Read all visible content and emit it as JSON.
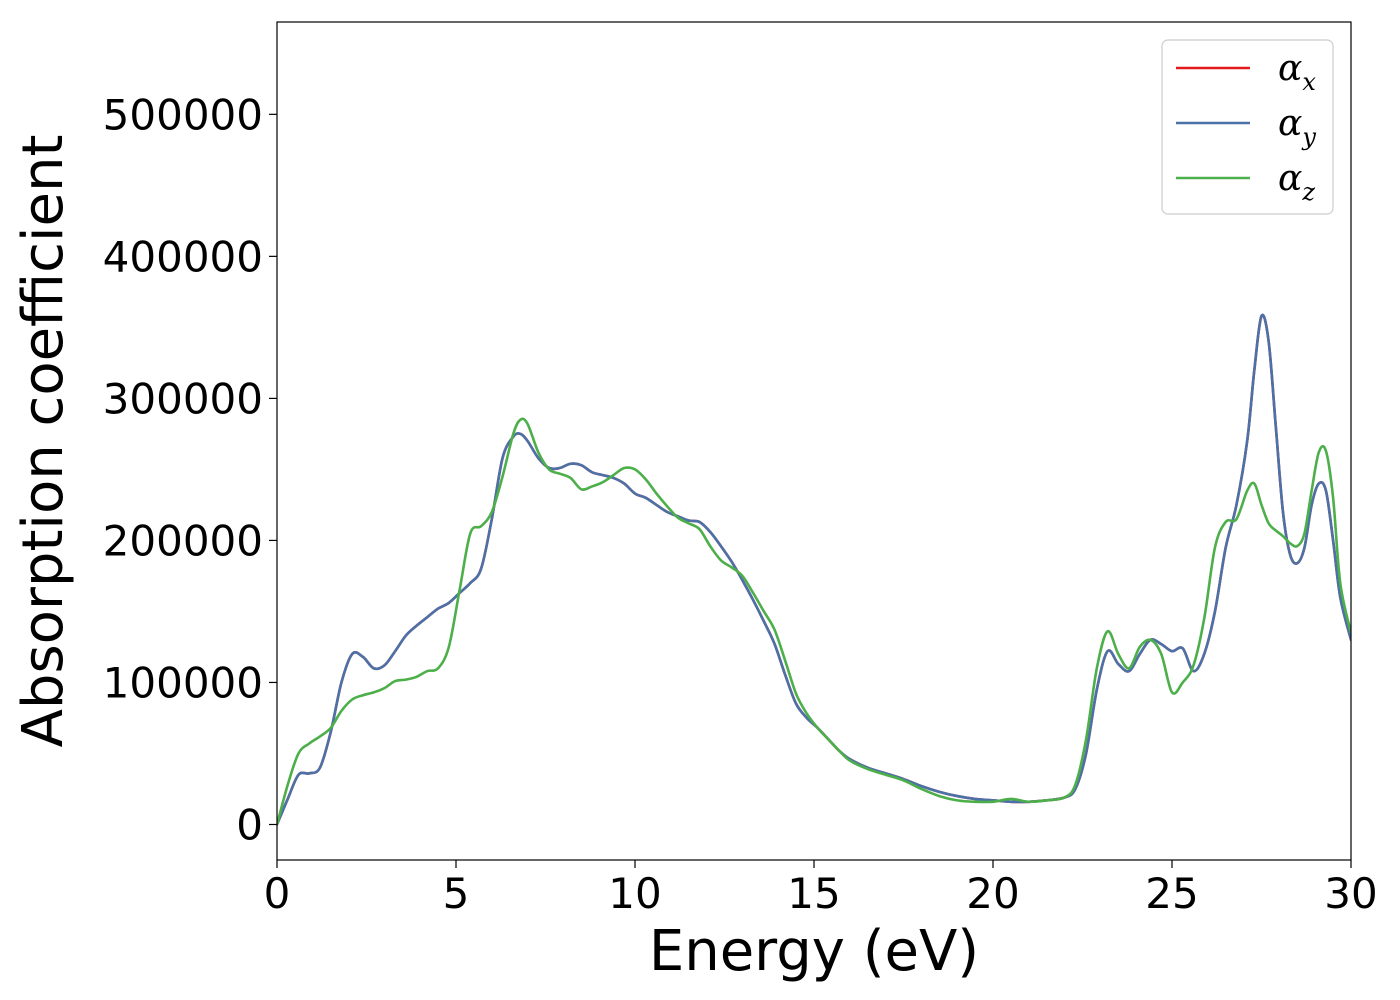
{
  "chart_data": {
    "type": "line",
    "title": "",
    "xlabel": "Energy (eV)",
    "ylabel": "Absorption coefficient",
    "xlim": [
      0,
      30
    ],
    "ylim": [
      -25000,
      565000
    ],
    "x_ticks": [
      0,
      5,
      10,
      15,
      20,
      25,
      30
    ],
    "y_ticks": [
      0,
      100000,
      200000,
      300000,
      400000,
      500000
    ],
    "grid": false,
    "legend_position": "top-right",
    "series": [
      {
        "name": "αx",
        "legend_base": "α",
        "legend_sub": "x",
        "color": "#e41a1c",
        "x": [
          0,
          0.3,
          0.6,
          0.9,
          1.2,
          1.5,
          1.8,
          2.1,
          2.4,
          2.7,
          3.0,
          3.3,
          3.6,
          3.9,
          4.2,
          4.5,
          4.8,
          5.1,
          5.4,
          5.7,
          6.0,
          6.3,
          6.6,
          6.8,
          7.0,
          7.3,
          7.6,
          7.9,
          8.2,
          8.5,
          8.8,
          9.1,
          9.4,
          9.7,
          10.0,
          10.3,
          10.6,
          10.9,
          11.2,
          11.5,
          11.8,
          12.1,
          12.4,
          12.7,
          13.0,
          13.3,
          13.6,
          13.9,
          14.2,
          14.5,
          14.8,
          15.1,
          15.4,
          15.7,
          16.0,
          16.5,
          17.0,
          17.5,
          18.0,
          18.5,
          19.0,
          19.5,
          20.0,
          20.5,
          21.0,
          21.5,
          22.0,
          22.3,
          22.6,
          22.9,
          23.2,
          23.5,
          23.8,
          24.1,
          24.4,
          24.7,
          25.0,
          25.3,
          25.6,
          25.9,
          26.2,
          26.5,
          26.8,
          27.1,
          27.3,
          27.5,
          27.7,
          27.9,
          28.1,
          28.3,
          28.5,
          28.7,
          28.9,
          29.1,
          29.3,
          29.5,
          29.7,
          30.0
        ],
        "values": [
          0,
          18000,
          35000,
          36000,
          40000,
          65000,
          100000,
          120000,
          118000,
          110000,
          112000,
          122000,
          133000,
          140000,
          146000,
          152000,
          156000,
          163000,
          170000,
          180000,
          215000,
          258000,
          273000,
          275000,
          270000,
          258000,
          251000,
          251000,
          254000,
          253000,
          248000,
          246000,
          244000,
          240000,
          233000,
          230000,
          225000,
          220000,
          217000,
          214000,
          213000,
          206000,
          196000,
          185000,
          172000,
          158000,
          143000,
          127000,
          105000,
          85000,
          75000,
          68000,
          60000,
          52000,
          46000,
          40000,
          36000,
          32000,
          27000,
          23000,
          20000,
          18000,
          17000,
          16000,
          16000,
          17000,
          19000,
          25000,
          50000,
          95000,
          122000,
          113000,
          108000,
          120000,
          130000,
          127000,
          122000,
          124000,
          108000,
          120000,
          150000,
          195000,
          225000,
          270000,
          320000,
          358000,
          340000,
          280000,
          220000,
          190000,
          184000,
          195000,
          225000,
          240000,
          235000,
          200000,
          160000,
          130000
        ]
      },
      {
        "name": "αy",
        "legend_base": "α",
        "legend_sub": "y",
        "color": "#4a72a8",
        "x": [
          0,
          0.3,
          0.6,
          0.9,
          1.2,
          1.5,
          1.8,
          2.1,
          2.4,
          2.7,
          3.0,
          3.3,
          3.6,
          3.9,
          4.2,
          4.5,
          4.8,
          5.1,
          5.4,
          5.7,
          6.0,
          6.3,
          6.6,
          6.8,
          7.0,
          7.3,
          7.6,
          7.9,
          8.2,
          8.5,
          8.8,
          9.1,
          9.4,
          9.7,
          10.0,
          10.3,
          10.6,
          10.9,
          11.2,
          11.5,
          11.8,
          12.1,
          12.4,
          12.7,
          13.0,
          13.3,
          13.6,
          13.9,
          14.2,
          14.5,
          14.8,
          15.1,
          15.4,
          15.7,
          16.0,
          16.5,
          17.0,
          17.5,
          18.0,
          18.5,
          19.0,
          19.5,
          20.0,
          20.5,
          21.0,
          21.5,
          22.0,
          22.3,
          22.6,
          22.9,
          23.2,
          23.5,
          23.8,
          24.1,
          24.4,
          24.7,
          25.0,
          25.3,
          25.6,
          25.9,
          26.2,
          26.5,
          26.8,
          27.1,
          27.3,
          27.5,
          27.7,
          27.9,
          28.1,
          28.3,
          28.5,
          28.7,
          28.9,
          29.1,
          29.3,
          29.5,
          29.7,
          30.0
        ],
        "values": [
          0,
          18000,
          35000,
          36000,
          40000,
          65000,
          100000,
          120000,
          118000,
          110000,
          112000,
          122000,
          133000,
          140000,
          146000,
          152000,
          156000,
          163000,
          170000,
          180000,
          215000,
          258000,
          273000,
          275000,
          270000,
          258000,
          251000,
          251000,
          254000,
          253000,
          248000,
          246000,
          244000,
          240000,
          233000,
          230000,
          225000,
          220000,
          217000,
          214000,
          213000,
          206000,
          196000,
          185000,
          172000,
          158000,
          143000,
          127000,
          105000,
          85000,
          75000,
          68000,
          60000,
          52000,
          46000,
          40000,
          36000,
          32000,
          27000,
          23000,
          20000,
          18000,
          17000,
          16000,
          16000,
          17000,
          19000,
          25000,
          50000,
          95000,
          122000,
          113000,
          108000,
          120000,
          130000,
          127000,
          122000,
          124000,
          108000,
          120000,
          150000,
          195000,
          225000,
          270000,
          320000,
          358000,
          340000,
          280000,
          220000,
          190000,
          184000,
          195000,
          225000,
          240000,
          235000,
          200000,
          160000,
          130000
        ]
      },
      {
        "name": "αz",
        "legend_base": "α",
        "legend_sub": "z",
        "color": "#4daf4a",
        "x": [
          0,
          0.3,
          0.6,
          0.9,
          1.2,
          1.5,
          1.8,
          2.1,
          2.4,
          2.7,
          3.0,
          3.3,
          3.6,
          3.9,
          4.2,
          4.5,
          4.8,
          5.1,
          5.4,
          5.7,
          6.0,
          6.3,
          6.6,
          6.8,
          7.0,
          7.3,
          7.6,
          7.9,
          8.2,
          8.5,
          8.8,
          9.1,
          9.4,
          9.7,
          10.0,
          10.3,
          10.6,
          10.9,
          11.2,
          11.5,
          11.8,
          12.1,
          12.4,
          12.7,
          13.0,
          13.3,
          13.6,
          13.9,
          14.2,
          14.5,
          14.8,
          15.1,
          15.4,
          15.7,
          16.0,
          16.5,
          17.0,
          17.5,
          18.0,
          18.5,
          19.0,
          19.5,
          20.0,
          20.5,
          21.0,
          21.5,
          22.0,
          22.3,
          22.6,
          22.9,
          23.2,
          23.5,
          23.8,
          24.1,
          24.4,
          24.7,
          25.0,
          25.3,
          25.6,
          25.9,
          26.2,
          26.5,
          26.8,
          27.1,
          27.3,
          27.5,
          27.7,
          27.9,
          28.1,
          28.3,
          28.5,
          28.7,
          28.9,
          29.1,
          29.3,
          29.5,
          29.7,
          30.0
        ],
        "values": [
          0,
          28000,
          50000,
          57000,
          62000,
          68000,
          80000,
          88000,
          91000,
          93000,
          96000,
          101000,
          102000,
          104000,
          108000,
          110000,
          125000,
          165000,
          205000,
          210000,
          220000,
          245000,
          275000,
          285000,
          282000,
          262000,
          250000,
          247000,
          244000,
          236000,
          238000,
          241000,
          246000,
          251000,
          250000,
          243000,
          233000,
          224000,
          216000,
          212000,
          208000,
          196000,
          186000,
          181000,
          175000,
          163000,
          150000,
          137000,
          115000,
          92000,
          78000,
          68000,
          60000,
          52000,
          45000,
          39000,
          35000,
          31000,
          25000,
          20000,
          17000,
          16000,
          16000,
          18000,
          16000,
          17000,
          19000,
          28000,
          60000,
          110000,
          136000,
          120000,
          110000,
          125000,
          130000,
          120000,
          93000,
          100000,
          112000,
          145000,
          195000,
          213000,
          215000,
          235000,
          240000,
          225000,
          212000,
          207000,
          203000,
          198000,
          196000,
          205000,
          235000,
          262000,
          263000,
          230000,
          170000,
          135000
        ]
      }
    ]
  }
}
